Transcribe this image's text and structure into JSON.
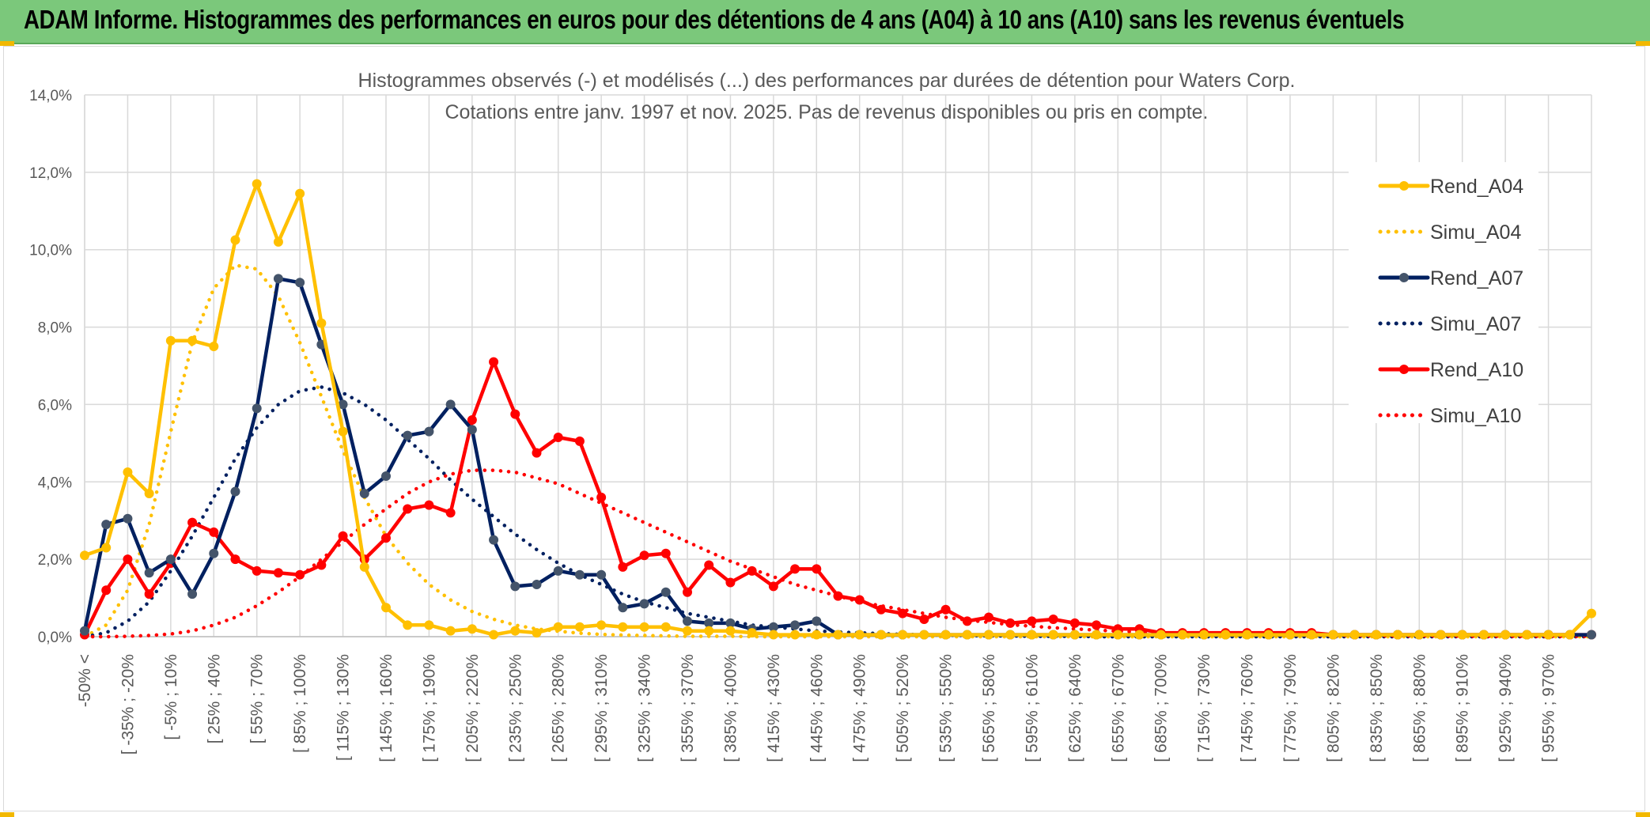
{
  "banner": {
    "title": "ADAM Informe. Histogrammes des performances en euros pour des détentions de 4 ans (A04) à 10 ans (A10) sans les revenus éventuels"
  },
  "colors": {
    "banner_bg": "#7bc87b",
    "A04": "#ffc000",
    "A07": "#002060",
    "A07_markers": "#44546a",
    "A10": "#ff0000",
    "grid": "#d9d9d9"
  },
  "chart_data": {
    "type": "line",
    "title": "Histogrammes observés (-) et modélisés (...) des performances par durées de détention pour Waters Corp.",
    "subtitle": "Cotations entre janv. 1997 et nov. 2025. Pas de revenus disponibles ou pris en compte.",
    "xlabel": "",
    "ylabel": "",
    "ylim": [
      0,
      14
    ],
    "y_unit": "%",
    "y_ticks": [
      "0,0%",
      "2,0%",
      "4,0%",
      "6,0%",
      "8,0%",
      "10,0%",
      "12,0%",
      "14,0%"
    ],
    "grid": true,
    "legend_position": "right",
    "x_tick_labels": [
      "-50% <",
      "[ -35% ; -20%",
      "[ -5% ; 10%",
      "[ 25% ; 40%",
      "[ 55% ; 70%",
      "[ 85% ; 100%",
      "[ 115% ; 130%",
      "[ 145% ; 160%",
      "[ 175% ; 190%",
      "[ 205% ; 220%",
      "[ 235% ; 250%",
      "[ 265% ; 280%",
      "[ 295% ; 310%",
      "[ 325% ; 340%",
      "[ 355% ; 370%",
      "[ 385% ; 400%",
      "[ 415% ; 430%",
      "[ 445% ; 460%",
      "[ 475% ; 490%",
      "[ 505% ; 520%",
      "[ 535% ; 550%",
      "[ 565% ; 580%",
      "[ 595% ; 610%",
      "[ 625% ; 640%",
      "[ 655% ; 670%",
      "[ 685% ; 700%",
      "[ 715% ; 730%",
      "[ 745% ; 760%",
      "[ 775% ; 790%",
      "[ 805% ; 820%",
      "[ 835% ; 850%",
      "[ 865% ; 880%",
      "[ 895% ; 910%",
      "[ 925% ; 940%",
      "[ 955% ; 970%"
    ],
    "series": [
      {
        "name": "Rend_A04",
        "style": "solid",
        "color": "#ffc000",
        "values": [
          2.1,
          2.3,
          4.25,
          3.7,
          7.65,
          7.65,
          7.5,
          10.25,
          11.7,
          10.2,
          11.45,
          8.1,
          5.3,
          1.8,
          0.75,
          0.3,
          0.3,
          0.15,
          0.2,
          0.05,
          0.15,
          0.1,
          0.25,
          0.25,
          0.3,
          0.25,
          0.25,
          0.25,
          0.15,
          0.15,
          0.15,
          0.1,
          0.05,
          0.05,
          0.05,
          0.05,
          0.05,
          0.05,
          0.05,
          0.05,
          0.05,
          0.05,
          0.05,
          0.05,
          0.05,
          0.05,
          0.05,
          0.05,
          0.05,
          0.05,
          0.05,
          0.05,
          0.05,
          0.05,
          0.05,
          0.05,
          0.05,
          0.05,
          0.05,
          0.05,
          0.05,
          0.05,
          0.05,
          0.05,
          0.05,
          0.05,
          0.05,
          0.05,
          0.05,
          0.05,
          0.6
        ]
      },
      {
        "name": "Simu_A04",
        "style": "dotted",
        "color": "#ffc000",
        "values": [
          0.0,
          0.3,
          1.2,
          2.9,
          5.3,
          7.6,
          9.0,
          9.6,
          9.5,
          8.8,
          7.6,
          6.2,
          4.8,
          3.6,
          2.6,
          1.9,
          1.35,
          0.95,
          0.65,
          0.45,
          0.3,
          0.2,
          0.14,
          0.09,
          0.06,
          0.04,
          0.03,
          0.02,
          0.01,
          0.01,
          0.01,
          0.0,
          0.0,
          0.0,
          0.0,
          0.0,
          0.0,
          0.0,
          0.0,
          0.0,
          0.0,
          0.0,
          0.0,
          0.0,
          0.0,
          0.0,
          0.0,
          0.0,
          0.0,
          0.0,
          0.0,
          0.0,
          0.0,
          0.0,
          0.0,
          0.0,
          0.0,
          0.0,
          0.0,
          0.0,
          0.0,
          0.0,
          0.0,
          0.0,
          0.0,
          0.0,
          0.0,
          0.0,
          0.0,
          0.0,
          0.0
        ]
      },
      {
        "name": "Rend_A07",
        "style": "solid",
        "color": "#002060",
        "values": [
          0.15,
          2.9,
          3.05,
          1.65,
          2.0,
          1.1,
          2.15,
          3.75,
          5.9,
          9.25,
          9.15,
          7.55,
          6.0,
          3.7,
          4.15,
          5.2,
          5.3,
          6.0,
          5.35,
          2.5,
          1.3,
          1.35,
          1.7,
          1.6,
          1.6,
          0.75,
          0.85,
          1.15,
          0.4,
          0.35,
          0.35,
          0.2,
          0.25,
          0.3,
          0.4,
          0.05,
          0.05,
          0.05,
          0.05,
          0.05,
          0.05,
          0.05,
          0.05,
          0.05,
          0.05,
          0.05,
          0.05,
          0.05,
          0.05,
          0.05,
          0.05,
          0.05,
          0.05,
          0.05,
          0.05,
          0.05,
          0.05,
          0.05,
          0.05,
          0.05,
          0.05,
          0.05,
          0.05,
          0.05,
          0.05,
          0.05,
          0.05,
          0.05,
          0.05,
          0.05,
          0.05
        ]
      },
      {
        "name": "Simu_A07",
        "style": "dotted",
        "color": "#002060",
        "values": [
          0.0,
          0.1,
          0.4,
          0.9,
          1.7,
          2.6,
          3.6,
          4.6,
          5.4,
          6.0,
          6.35,
          6.45,
          6.3,
          6.0,
          5.6,
          5.1,
          4.6,
          4.05,
          3.55,
          3.1,
          2.65,
          2.25,
          1.9,
          1.6,
          1.35,
          1.1,
          0.9,
          0.75,
          0.6,
          0.5,
          0.4,
          0.3,
          0.25,
          0.2,
          0.15,
          0.12,
          0.1,
          0.08,
          0.06,
          0.05,
          0.04,
          0.03,
          0.02,
          0.02,
          0.01,
          0.01,
          0.01,
          0.0,
          0.0,
          0.0,
          0.0,
          0.0,
          0.0,
          0.0,
          0.0,
          0.0,
          0.0,
          0.0,
          0.0,
          0.0,
          0.0,
          0.0,
          0.0,
          0.0,
          0.0,
          0.0,
          0.0,
          0.0,
          0.0,
          0.0,
          0.0
        ]
      },
      {
        "name": "Rend_A10",
        "style": "solid",
        "color": "#ff0000",
        "values": [
          0.05,
          1.2,
          2.0,
          1.1,
          1.9,
          2.95,
          2.7,
          2.0,
          1.7,
          1.65,
          1.6,
          1.85,
          2.6,
          2.0,
          2.55,
          3.3,
          3.4,
          3.2,
          5.6,
          7.1,
          5.75,
          4.75,
          5.15,
          5.05,
          3.6,
          1.8,
          2.1,
          2.15,
          1.15,
          1.85,
          1.4,
          1.7,
          1.3,
          1.75,
          1.75,
          1.05,
          0.95,
          0.7,
          0.6,
          0.45,
          0.7,
          0.4,
          0.5,
          0.35,
          0.4,
          0.45,
          0.35,
          0.3,
          0.2,
          0.2,
          0.1,
          0.1,
          0.1,
          0.1,
          0.1,
          0.1,
          0.1,
          0.1,
          0.05,
          0.05,
          0.05,
          0.05,
          0.05,
          0.05,
          0.05,
          0.05,
          0.05,
          0.05,
          0.05,
          0.05,
          0.05
        ]
      },
      {
        "name": "Simu_A10",
        "style": "dotted",
        "color": "#ff0000",
        "values": [
          0.0,
          0.0,
          0.01,
          0.03,
          0.07,
          0.15,
          0.3,
          0.5,
          0.8,
          1.15,
          1.55,
          2.0,
          2.45,
          2.9,
          3.3,
          3.7,
          4.0,
          4.2,
          4.3,
          4.3,
          4.25,
          4.1,
          3.95,
          3.7,
          3.45,
          3.2,
          2.95,
          2.7,
          2.45,
          2.2,
          1.95,
          1.75,
          1.55,
          1.35,
          1.2,
          1.05,
          0.9,
          0.8,
          0.7,
          0.6,
          0.5,
          0.43,
          0.37,
          0.31,
          0.27,
          0.23,
          0.2,
          0.17,
          0.14,
          0.12,
          0.1,
          0.09,
          0.08,
          0.07,
          0.06,
          0.05,
          0.04,
          0.04,
          0.03,
          0.03,
          0.02,
          0.02,
          0.02,
          0.02,
          0.01,
          0.01,
          0.01,
          0.01,
          0.01,
          0.01,
          0.01
        ]
      }
    ]
  }
}
